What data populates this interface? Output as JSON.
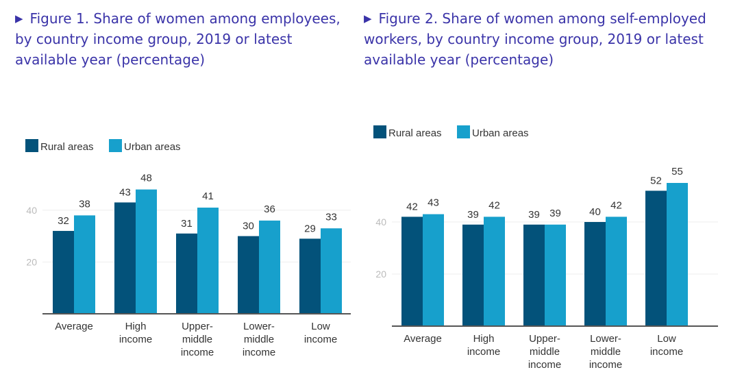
{
  "figures": [
    {
      "marker": "▶",
      "title": "Figure 1. Share of women among employees, by country income group, 2019 or latest available year (percentage)"
    },
    {
      "marker": "▶",
      "title": "Figure 2. Share of women among self-employed workers, by country income group, 2019 or latest available year (percentage)"
    }
  ],
  "colors": {
    "rural": "#03527a",
    "urban": "#17a0cc",
    "title": "#3a33a8"
  },
  "chart_data": [
    {
      "type": "bar",
      "categories": [
        "Average",
        "High income",
        "Upper-middle income",
        "Lower-middle income",
        "Low income"
      ],
      "category_lines": [
        [
          "Average"
        ],
        [
          "High",
          "income"
        ],
        [
          "Upper-",
          "middle",
          "income"
        ],
        [
          "Lower-",
          "middle",
          "income"
        ],
        [
          "Low",
          "income"
        ]
      ],
      "series": [
        {
          "name": "Rural areas",
          "values": [
            32,
            43,
            31,
            30,
            29
          ]
        },
        {
          "name": "Urban areas",
          "values": [
            38,
            48,
            41,
            36,
            33
          ]
        }
      ],
      "yticks": [
        20,
        40
      ],
      "ylim": [
        0,
        50
      ],
      "grid": true,
      "legend": "top-left"
    },
    {
      "type": "bar",
      "categories": [
        "Average",
        "High income",
        "Upper-middle income",
        "Lower-middle income",
        "Low income"
      ],
      "category_lines": [
        [
          "Average"
        ],
        [
          "High",
          "income"
        ],
        [
          "Upper-",
          "middle",
          "income"
        ],
        [
          "Lower-",
          "middle",
          "income"
        ],
        [
          "Low",
          "income"
        ]
      ],
      "series": [
        {
          "name": "Rural areas",
          "values": [
            42,
            39,
            39,
            40,
            52
          ]
        },
        {
          "name": "Urban areas",
          "values": [
            43,
            42,
            39,
            42,
            55
          ]
        }
      ],
      "yticks": [
        20,
        40
      ],
      "ylim": [
        0,
        57
      ],
      "grid": true,
      "legend": "top-left"
    }
  ]
}
